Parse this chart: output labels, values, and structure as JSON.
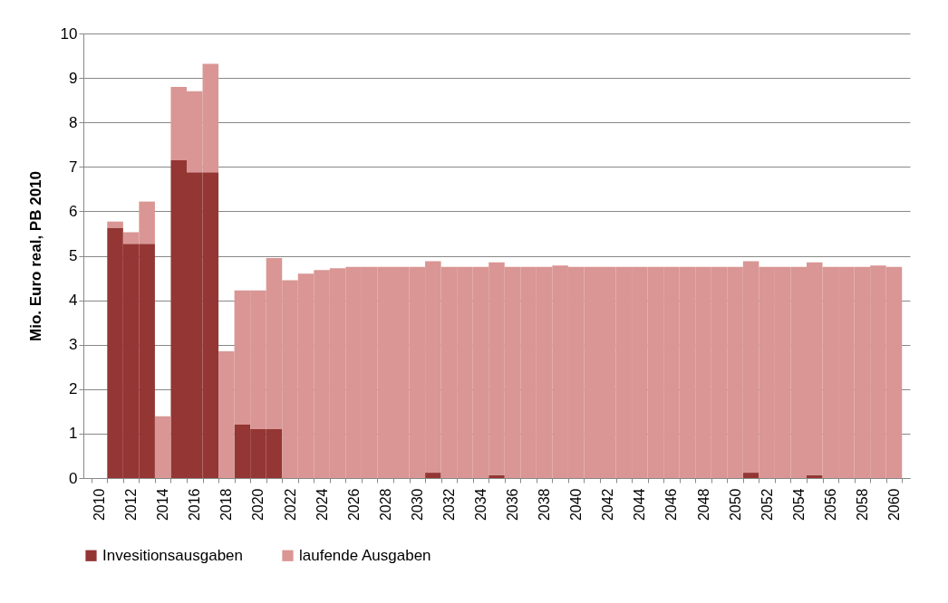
{
  "chart_data": {
    "type": "bar",
    "stacked": true,
    "ylabel": "Mio. Euro real,  PB 2010",
    "categories": [
      "2010",
      null,
      "2012",
      null,
      "2014",
      null,
      "2016",
      null,
      "2018",
      null,
      "2020",
      null,
      "2022",
      null,
      "2024",
      null,
      "2026",
      null,
      "2028",
      null,
      "2030",
      null,
      "2032",
      null,
      "2034",
      null,
      "2036",
      null,
      "2038",
      null,
      "2040",
      null,
      "2042",
      null,
      "2044",
      null,
      "2046",
      null,
      "2048",
      null,
      "2050",
      null,
      "2052",
      null,
      "2054",
      null,
      "2056",
      null,
      "2058",
      null,
      "2060"
    ],
    "series": [
      {
        "name": "Invesitionsausgaben",
        "color": "#943634",
        "values": [
          0,
          5.63,
          5.27,
          5.27,
          0,
          7.15,
          6.88,
          6.88,
          0,
          1.2,
          1.1,
          1.1,
          0,
          0,
          0,
          0,
          0,
          0,
          0,
          0,
          0,
          0.12,
          0,
          0,
          0,
          0.07,
          0,
          0,
          0,
          0,
          0,
          0,
          0,
          0,
          0,
          0,
          0,
          0,
          0,
          0,
          0,
          0.12,
          0,
          0,
          0,
          0.07,
          0,
          0,
          0,
          0,
          0
        ]
      },
      {
        "name": "laufende Ausgaben",
        "color": "#d99694",
        "values": [
          0,
          0.14,
          0.26,
          0.95,
          1.39,
          1.65,
          1.82,
          2.44,
          2.85,
          3.02,
          3.12,
          3.85,
          4.45,
          4.6,
          4.68,
          4.72,
          4.75,
          4.75,
          4.75,
          4.75,
          4.75,
          4.76,
          4.75,
          4.75,
          4.75,
          4.78,
          4.75,
          4.75,
          4.75,
          4.78,
          4.75,
          4.75,
          4.75,
          4.75,
          4.75,
          4.75,
          4.75,
          4.75,
          4.75,
          4.75,
          4.75,
          4.76,
          4.75,
          4.75,
          4.75,
          4.78,
          4.75,
          4.75,
          4.75,
          4.78,
          4.75
        ]
      }
    ],
    "ylim": [
      0,
      10
    ],
    "yticks": [
      0,
      1,
      2,
      3,
      4,
      5,
      6,
      7,
      8,
      9,
      10
    ],
    "grid": "y",
    "legend": "bottom"
  }
}
